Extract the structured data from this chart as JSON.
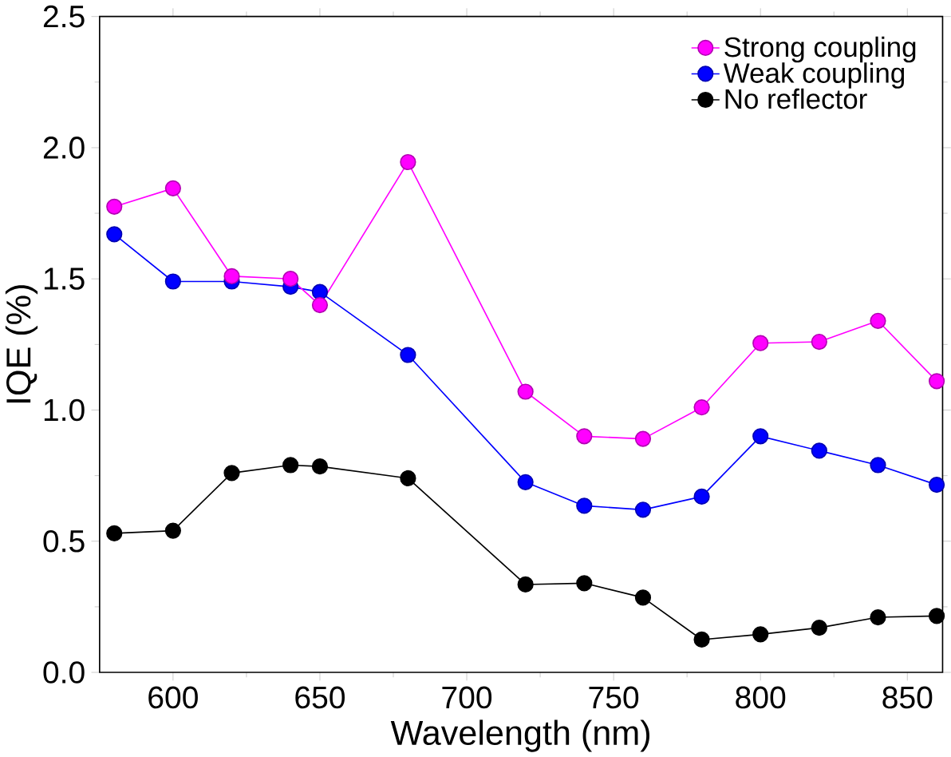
{
  "chart_data": {
    "type": "line",
    "xlabel": "Wavelength (nm)",
    "ylabel": "IQE (%)",
    "x": [
      580,
      600,
      620,
      640,
      650,
      680,
      720,
      740,
      760,
      780,
      800,
      820,
      840,
      860
    ],
    "series": [
      {
        "name": "Strong coupling",
        "color": "#ff00ff",
        "values": [
          1.775,
          1.845,
          1.51,
          1.5,
          1.4,
          1.945,
          1.07,
          0.9,
          0.89,
          1.01,
          1.255,
          1.26,
          1.34,
          1.11
        ]
      },
      {
        "name": "Weak coupling",
        "color": "#0000ff",
        "values": [
          1.67,
          1.49,
          1.49,
          1.47,
          1.45,
          1.21,
          0.725,
          0.635,
          0.62,
          0.67,
          0.9,
          0.845,
          0.79,
          0.715
        ]
      },
      {
        "name": "No reflector",
        "color": "#000000",
        "values": [
          0.53,
          0.54,
          0.76,
          0.79,
          0.785,
          0.74,
          0.335,
          0.34,
          0.285,
          0.125,
          0.145,
          0.17,
          0.21,
          0.215
        ]
      }
    ],
    "xlim": [
      575,
      862
    ],
    "ylim": [
      0,
      2.5
    ],
    "xticks": [
      600,
      650,
      700,
      750,
      800,
      850
    ],
    "yticks": [
      {
        "value": 0,
        "label": "0.0"
      },
      0.5,
      {
        "value": 1,
        "label": "1.0"
      },
      1.5,
      {
        "value": 2,
        "label": "2.0"
      },
      2.5
    ],
    "legend": "top right",
    "marker": "circle",
    "line_style": "solid",
    "grid": false
  }
}
